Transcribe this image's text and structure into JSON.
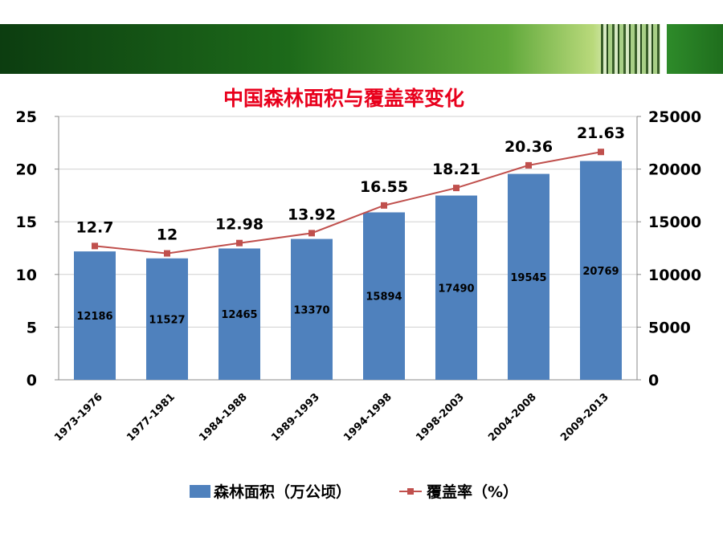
{
  "chart_data": {
    "type": "bar",
    "title": "中国森林面积与覆盖率变化",
    "categories": [
      "1973-1976",
      "1977-1981",
      "1984-1988",
      "1989-1993",
      "1994-1998",
      "1998-2003",
      "2004-2008",
      "2009-2013"
    ],
    "series": [
      {
        "name": "森林面积（万公顷）",
        "type": "bar",
        "axis": "right",
        "values": [
          12186,
          11527,
          12465,
          13370,
          15894,
          17490,
          19545,
          20769
        ],
        "color": "#4f81bd"
      },
      {
        "name": "覆盖率（%）",
        "type": "line",
        "axis": "left",
        "values": [
          12.7,
          12,
          12.98,
          13.92,
          16.55,
          18.21,
          20.36,
          21.63
        ],
        "color": "#c0504d"
      }
    ],
    "y_left": {
      "ylim": [
        0,
        25
      ],
      "ticks": [
        0,
        5,
        10,
        15,
        20,
        25
      ]
    },
    "y_right": {
      "ylim": [
        0,
        25000
      ],
      "ticks": [
        0,
        5000,
        10000,
        15000,
        20000,
        25000
      ]
    },
    "grid": true,
    "legend_position": "bottom"
  },
  "colors": {
    "bar": "#4f81bd",
    "line": "#c0504d",
    "title": "#e8001c",
    "grid": "#d0d0d0",
    "banner_dark": "#0c3d10"
  }
}
